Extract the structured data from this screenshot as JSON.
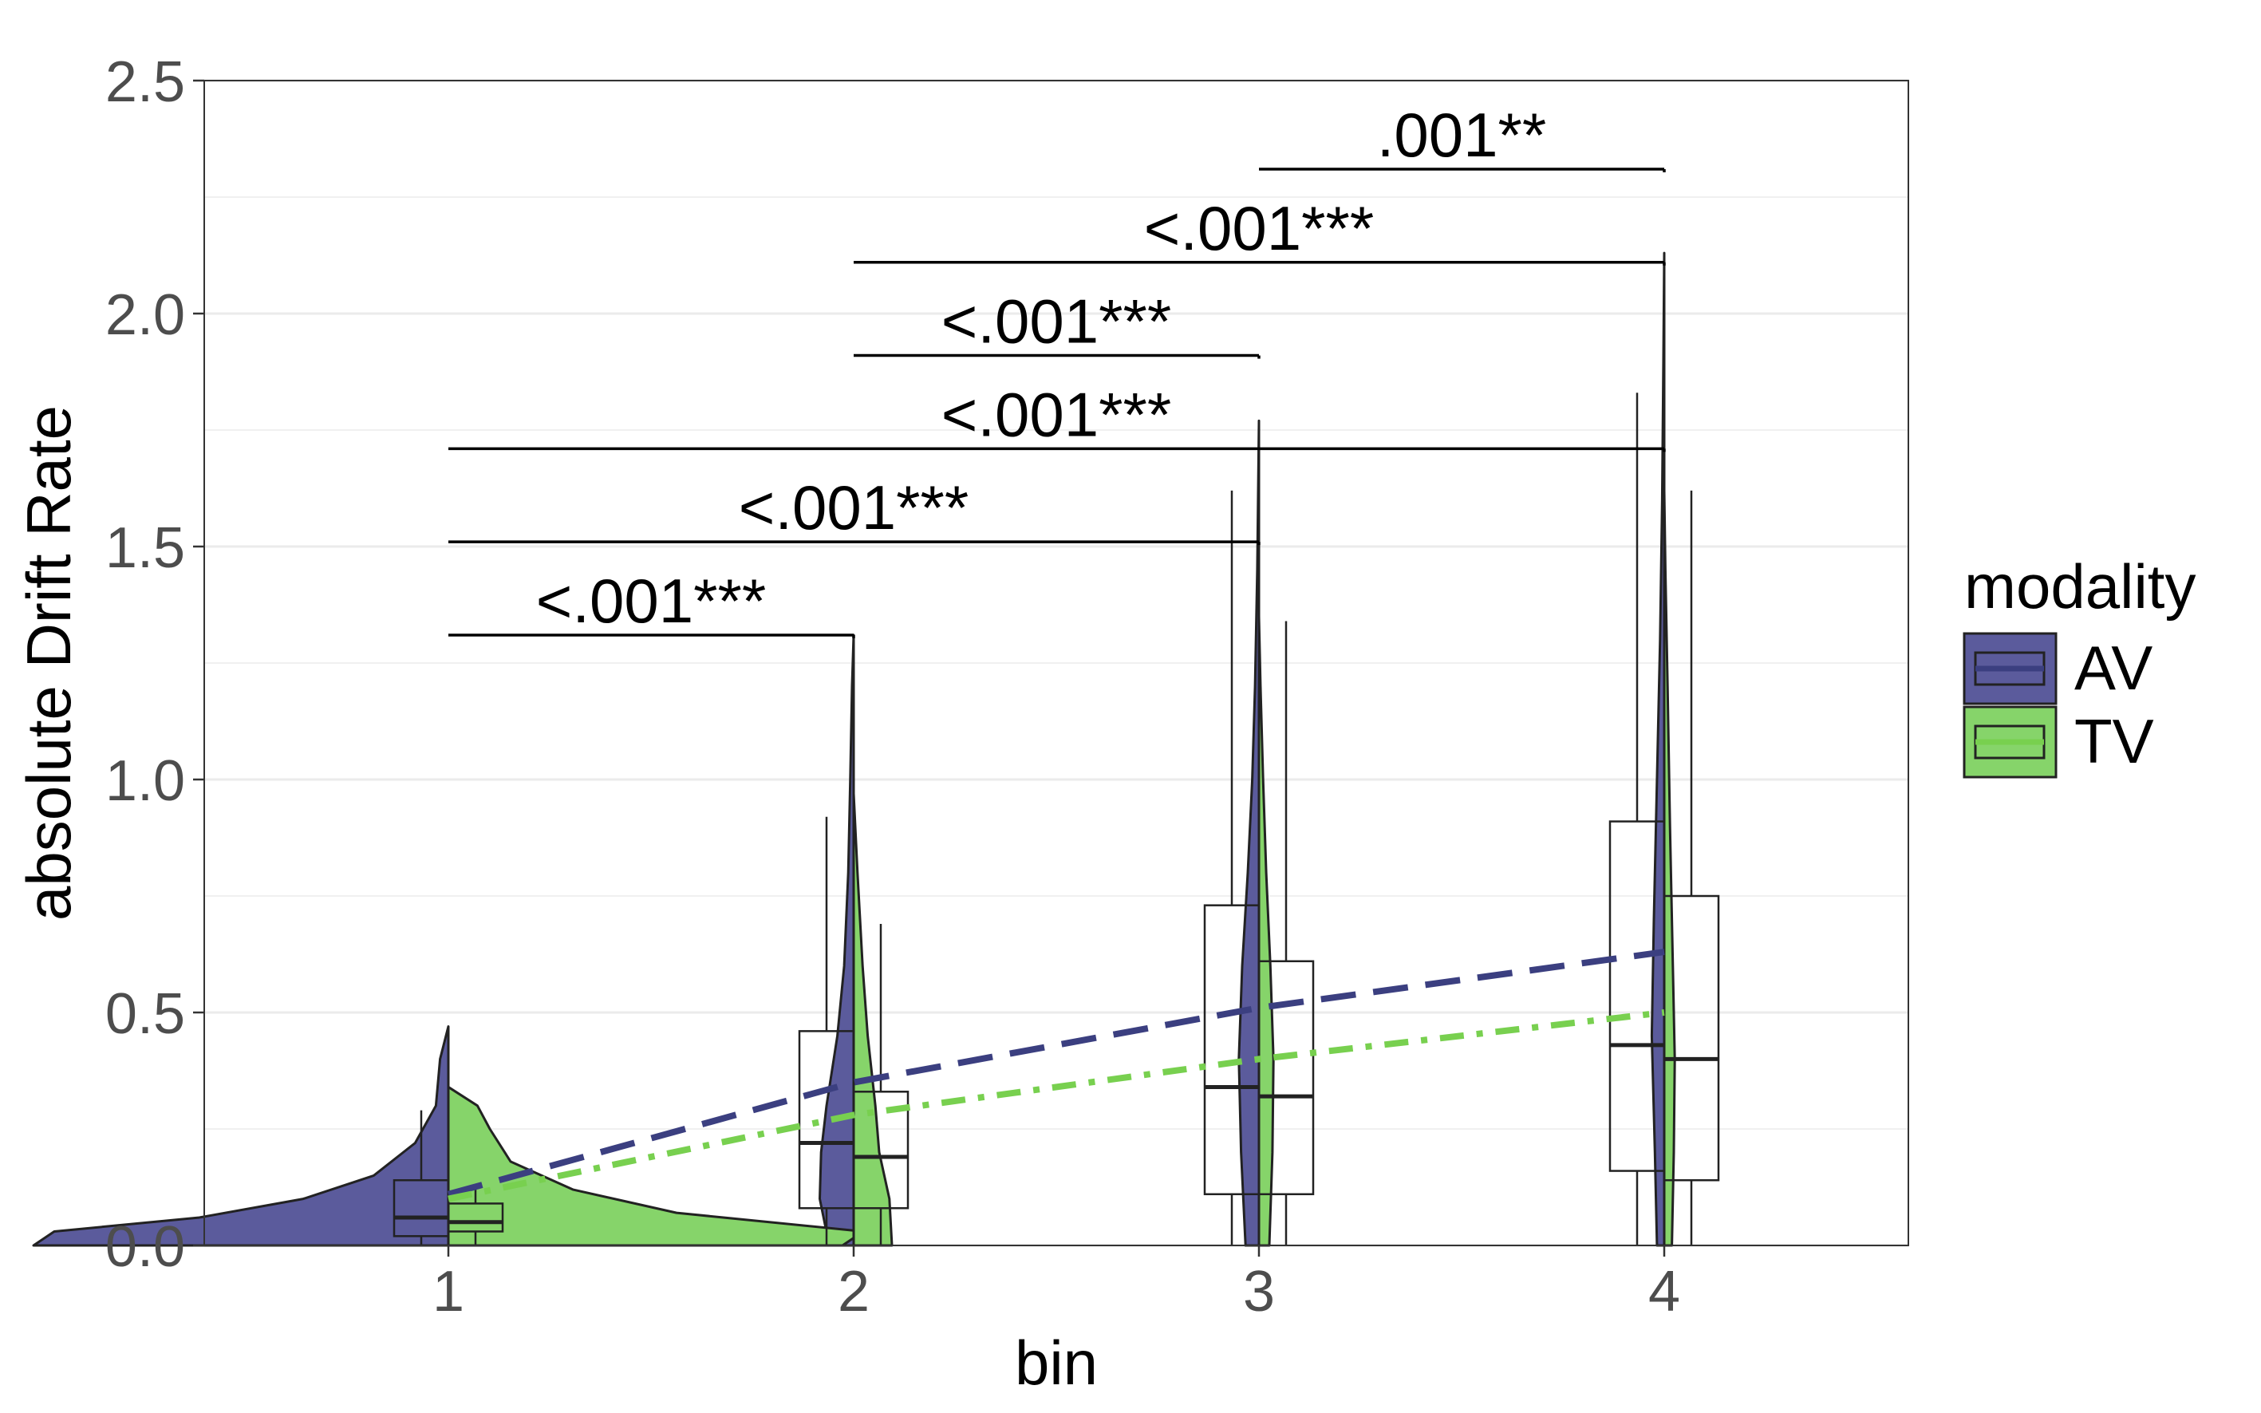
{
  "chart_data": {
    "type": "violin",
    "xlabel": "bin",
    "ylabel": "absolute Drift Rate",
    "x_categories": [
      "1",
      "2",
      "3",
      "4"
    ],
    "ylim": [
      0,
      2.5
    ],
    "y_ticks": [
      "0.0",
      "0.5",
      "1.0",
      "1.5",
      "2.0",
      "2.5"
    ],
    "grid": true,
    "legend": {
      "title": "modality",
      "position": "right",
      "entries": [
        "AV",
        "TV"
      ]
    },
    "colors": {
      "AV": "#5b5b9c",
      "TV": "#86d46a",
      "AV_line": "#3b3f80",
      "TV_line": "#78d04f"
    },
    "series": [
      {
        "name": "AV",
        "side": "left",
        "boxes": [
          {
            "bin": "1",
            "min": 0.0,
            "q1": 0.02,
            "median": 0.06,
            "q3": 0.14,
            "max": 0.29
          },
          {
            "bin": "2",
            "min": 0.0,
            "q1": 0.08,
            "median": 0.22,
            "q3": 0.46,
            "max": 0.92
          },
          {
            "bin": "3",
            "min": 0.0,
            "q1": 0.11,
            "median": 0.34,
            "q3": 0.73,
            "max": 1.62
          },
          {
            "bin": "4",
            "min": 0.0,
            "q1": 0.16,
            "median": 0.43,
            "q3": 0.91,
            "max": 1.83
          }
        ],
        "violin_max": [
          0.47,
          1.31,
          1.77,
          2.13
        ],
        "trend": [
          0.11,
          0.35,
          0.51,
          0.63
        ]
      },
      {
        "name": "TV",
        "side": "right",
        "boxes": [
          {
            "bin": "1",
            "min": 0.0,
            "q1": 0.03,
            "median": 0.05,
            "q3": 0.09,
            "max": 0.13
          },
          {
            "bin": "2",
            "min": 0.0,
            "q1": 0.08,
            "median": 0.19,
            "q3": 0.33,
            "max": 0.69
          },
          {
            "bin": "3",
            "min": 0.0,
            "q1": 0.11,
            "median": 0.32,
            "q3": 0.61,
            "max": 1.34
          },
          {
            "bin": "4",
            "min": 0.0,
            "q1": 0.14,
            "median": 0.4,
            "q3": 0.75,
            "max": 1.62
          }
        ],
        "violin_max": [
          0.34,
          0.97,
          1.35,
          1.62
        ],
        "trend": [
          0.1,
          0.28,
          0.4,
          0.5
        ]
      }
    ],
    "significance": [
      {
        "from": "1",
        "to": "2",
        "y": 1.31,
        "label": "<.001***"
      },
      {
        "from": "1",
        "to": "3",
        "y": 1.51,
        "label": "<.001***"
      },
      {
        "from": "1",
        "to": "4",
        "y": 1.71,
        "label": "<.001***"
      },
      {
        "from": "2",
        "to": "3",
        "y": 1.91,
        "label": "<.001***"
      },
      {
        "from": "2",
        "to": "4",
        "y": 2.11,
        "label": "<.001***"
      },
      {
        "from": "3",
        "to": "4",
        "y": 2.31,
        "label": ".001**"
      }
    ]
  }
}
